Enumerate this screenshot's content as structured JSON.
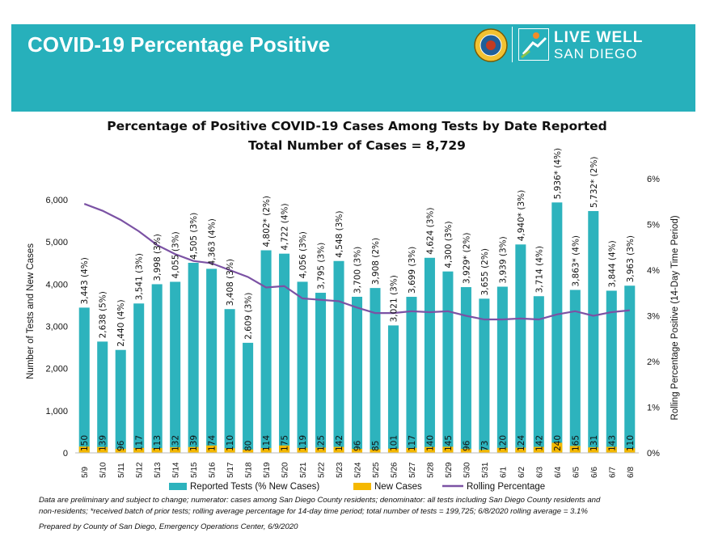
{
  "header": {
    "title": "COVID-19 Percentage Positive",
    "brand_line1": "LIVE WELL",
    "brand_line2": "SAN DIEGO"
  },
  "colors": {
    "banner": "#27b0bb",
    "tests_bar": "#2db3bd",
    "new_cases_bar": "#f5b800",
    "rolling_line": "#7b52a4"
  },
  "chart_data": {
    "type": "bar",
    "title": "Percentage of Positive COVID-19 Cases Among Tests by Date Reported",
    "subtitle": "Total Number of Cases = 8,729",
    "ylabel": "Number of Tests and New Cases",
    "y2label": "Rolling Percentage Positive (14-Day Time Period)",
    "ylim": [
      0,
      6000
    ],
    "yticks": [
      0,
      1000,
      2000,
      3000,
      4000,
      5000,
      6000
    ],
    "ytick_labels": [
      "0",
      "1,000",
      "2,000",
      "3,000",
      "4,000",
      "5,000",
      "6,000"
    ],
    "y2lim": [
      0,
      6
    ],
    "y2ticks": [
      0,
      1,
      2,
      3,
      4,
      5,
      6
    ],
    "y2tick_labels": [
      "0%",
      "1%",
      "2%",
      "3%",
      "4%",
      "5%",
      "6%"
    ],
    "grid": false,
    "legend_position": "bottom",
    "categories": [
      "5/9",
      "5/10",
      "5/11",
      "5/12",
      "5/13",
      "5/14",
      "5/15",
      "5/16",
      "5/17",
      "5/18",
      "5/19",
      "5/20",
      "5/21",
      "5/22",
      "5/23",
      "5/24",
      "5/25",
      "5/26",
      "5/27",
      "5/28",
      "5/29",
      "5/30",
      "5/31",
      "6/1",
      "6/2",
      "6/3",
      "6/4",
      "6/5",
      "6/6",
      "6/7",
      "6/8"
    ],
    "series": [
      {
        "name": "Reported Tests (% New Cases)",
        "type": "bar",
        "values": [
          3443,
          2638,
          2440,
          3541,
          3998,
          4055,
          4505,
          4363,
          3408,
          2609,
          4802,
          4722,
          4056,
          3795,
          4548,
          3700,
          3908,
          3021,
          3699,
          4624,
          4300,
          3929,
          3655,
          3939,
          4940,
          3714,
          5936,
          3863,
          5732,
          3844,
          3963
        ],
        "labels": [
          "3,443 (4%)",
          "2,638 (5%)",
          "2,440 (4%)",
          "3,541 (3%)",
          "3,998 (3%)",
          "4,055 (3%)",
          "4,505 (3%)",
          "4,363 (4%)",
          "3,408 (3%)",
          "2,609 (3%)",
          "4,802* (2%)",
          "4,722 (4%)",
          "4,056 (3%)",
          "3,795 (3%)",
          "4,548 (3%)",
          "3,700 (3%)",
          "3,908 (2%)",
          "3,021 (3%)",
          "3,699 (3%)",
          "4,624 (3%)",
          "4,300 (3%)",
          "3,929* (2%)",
          "3,655 (2%)",
          "3,939 (3%)",
          "4,940* (3%)",
          "3,714 (4%)",
          "5,936* (4%)",
          "3,863* (4%)",
          "5,732* (2%)",
          "3,844 (4%)",
          "3,963 (3%)"
        ]
      },
      {
        "name": "New Cases",
        "type": "bar",
        "values": [
          150,
          139,
          96,
          117,
          113,
          132,
          139,
          174,
          110,
          80,
          114,
          175,
          119,
          125,
          142,
          96,
          85,
          101,
          117,
          140,
          145,
          96,
          73,
          120,
          124,
          142,
          240,
          165,
          131,
          143,
          110
        ]
      },
      {
        "name": "Rolling Percentage",
        "type": "line",
        "axis": "right",
        "values": [
          5.45,
          5.3,
          5.1,
          4.85,
          4.55,
          4.35,
          4.2,
          4.15,
          4.0,
          3.85,
          3.62,
          3.65,
          3.38,
          3.35,
          3.32,
          3.18,
          3.06,
          3.06,
          3.1,
          3.08,
          3.1,
          3.0,
          2.92,
          2.92,
          2.94,
          2.92,
          3.03,
          3.1,
          3.0,
          3.08,
          3.12
        ]
      }
    ]
  },
  "footnote": {
    "line1": "Data are preliminary and subject to change; numerator: cases among San Diego County residents; denominator: all tests including San Diego County residents and",
    "line2": "non-residents; *received batch of prior tests; rolling average percentage for 14-day time period; total number of tests = 199,725; 6/8/2020 rolling average = 3.1%",
    "line3": "Prepared by County of San Diego, Emergency Operations Center, 6/9/2020"
  }
}
